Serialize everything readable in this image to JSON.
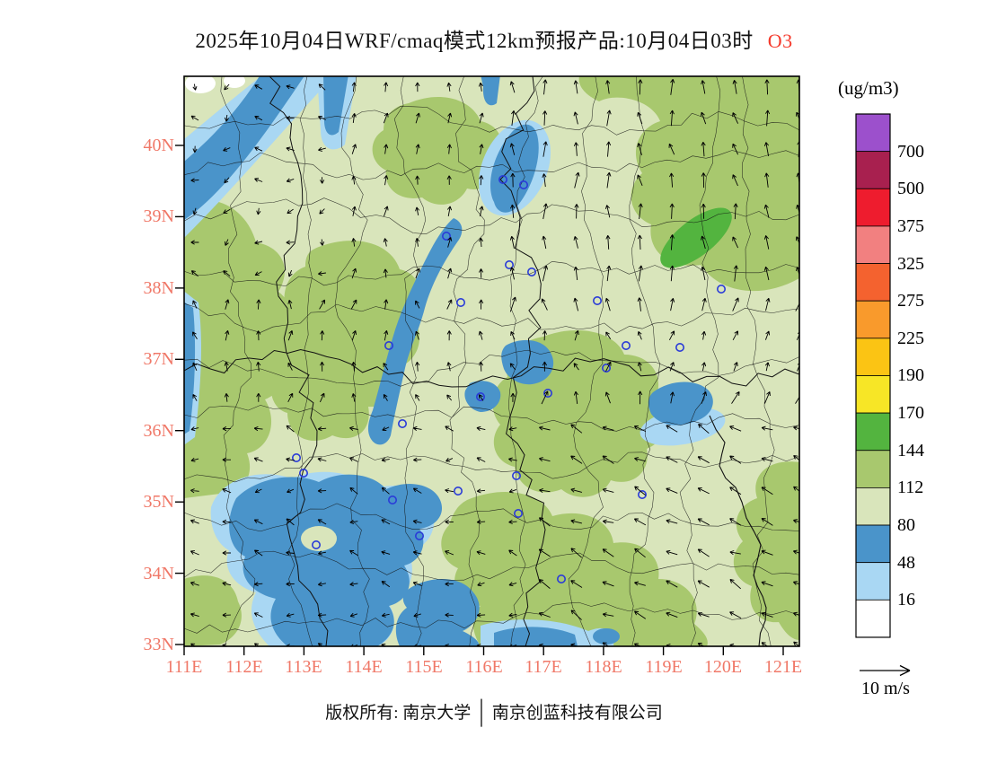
{
  "title": {
    "main": "2025年10月04日WRF/cmaq模式12km预报产品:10月04日03时",
    "species": "O3"
  },
  "colorbar": {
    "units": "(ug/m3)",
    "levels": [
      "700",
      "500",
      "375",
      "325",
      "275",
      "225",
      "190",
      "170",
      "144",
      "112",
      "80",
      "48",
      "16"
    ],
    "colors": [
      "#9c50cc",
      "#a8204f",
      "#ee1c2e",
      "#f28080",
      "#f4622f",
      "#f99a2c",
      "#fbc414",
      "#f7e626",
      "#53b43f",
      "#a8c86e",
      "#d9e5bb",
      "#4a94ca",
      "#a9d7f3",
      "#ffffff"
    ]
  },
  "axes": {
    "lat": [
      "40N",
      "39N",
      "38N",
      "37N",
      "36N",
      "35N",
      "34N",
      "33N"
    ],
    "lon": [
      "111E",
      "112E",
      "113E",
      "114E",
      "115E",
      "116E",
      "117E",
      "118E",
      "119E",
      "120E",
      "121E"
    ],
    "label_color": "#f07868"
  },
  "wind_legend": {
    "label": "10 m/s"
  },
  "footer": {
    "owner": "版权所有: 南京大学",
    "separator": "│",
    "company": "南京创蓝科技有限公司"
  },
  "map": {
    "field_colors": {
      "background_pale_green": "#d9e5bb",
      "olive_green": "#a8c86e",
      "green": "#53b43f",
      "blue": "#4a94ca",
      "light_blue": "#a9d7f3",
      "white": "#ffffff"
    },
    "marker_color": "#2a3bd8",
    "city_markers": [
      [
        355,
        115
      ],
      [
        378,
        121
      ],
      [
        292,
        178
      ],
      [
        362,
        210
      ],
      [
        387,
        218
      ],
      [
        308,
        252
      ],
      [
        228,
        300
      ],
      [
        470,
        325
      ],
      [
        405,
        353
      ],
      [
        330,
        357
      ],
      [
        125,
        425
      ],
      [
        133,
        442
      ],
      [
        370,
        445
      ],
      [
        305,
        462
      ],
      [
        232,
        472
      ],
      [
        510,
        466
      ],
      [
        372,
        487
      ],
      [
        262,
        512
      ],
      [
        147,
        522
      ],
      [
        420,
        560
      ],
      [
        492,
        300
      ],
      [
        243,
        387
      ],
      [
        552,
        302
      ],
      [
        598,
        237
      ],
      [
        460,
        250
      ]
    ]
  }
}
